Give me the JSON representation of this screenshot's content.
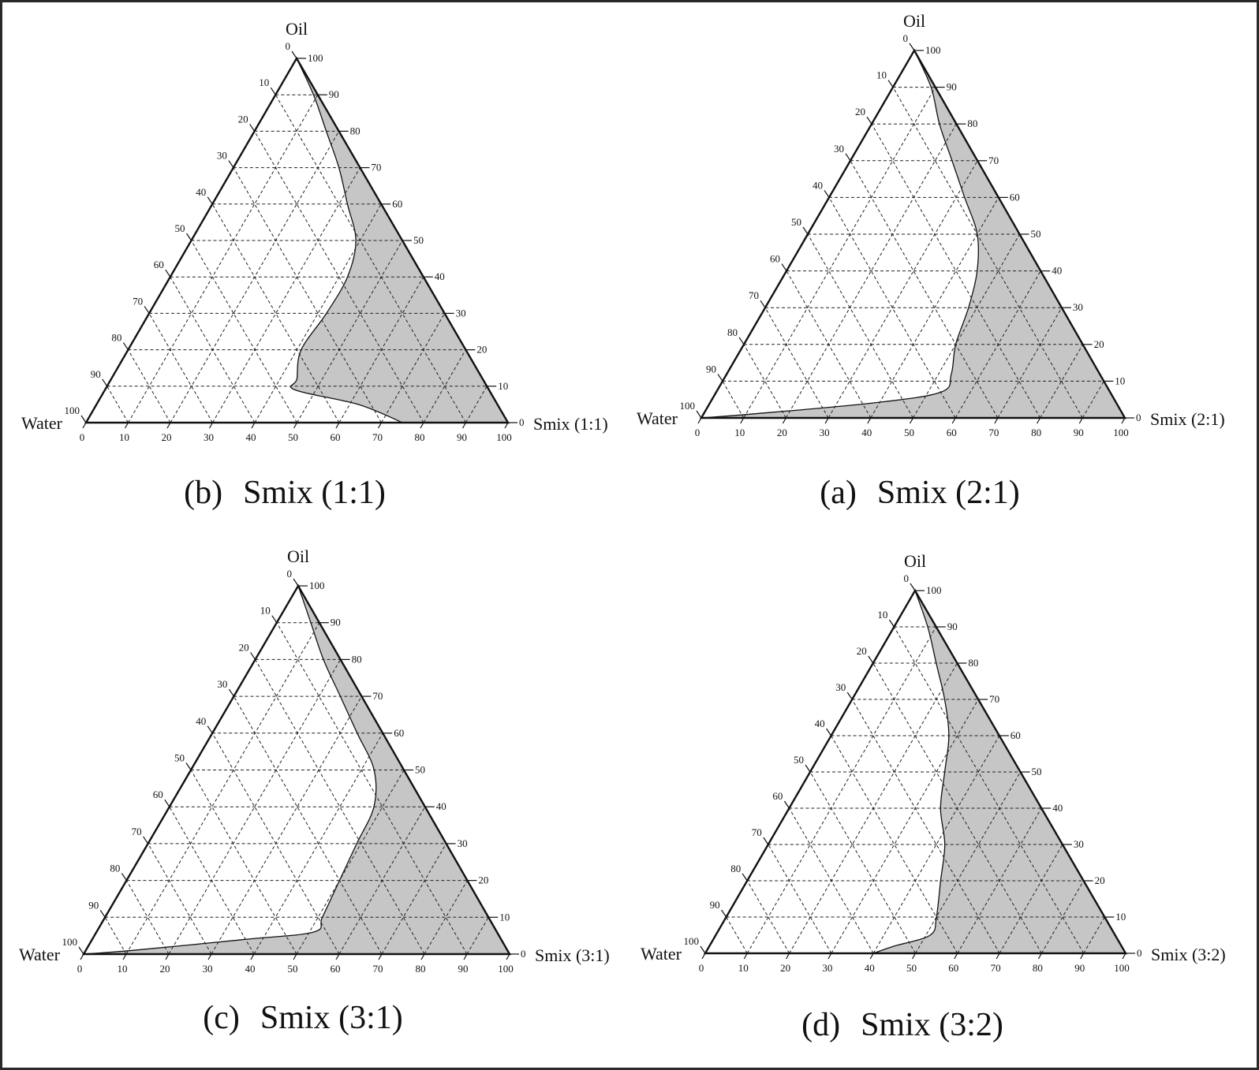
{
  "chart_data": [
    {
      "type": "ternary",
      "caption_letter": "(b)",
      "caption_text": "Smix (1:1)",
      "vertex_labels": {
        "top": "Oil",
        "left": "Water",
        "right": "Smix (1:1)"
      },
      "tick_labels": [
        "0",
        "10",
        "20",
        "30",
        "40",
        "50",
        "60",
        "70",
        "80",
        "90",
        "100"
      ],
      "grid": true,
      "shaded_region_color": "#c6c6c6",
      "boundary": [
        {
          "oil": 100,
          "water": 0
        },
        {
          "oil": 90,
          "water": 1
        },
        {
          "oil": 80,
          "water": 3
        },
        {
          "oil": 70,
          "water": 5
        },
        {
          "oil": 60,
          "water": 8
        },
        {
          "oil": 50,
          "water": 11
        },
        {
          "oil": 40,
          "water": 18
        },
        {
          "oil": 30,
          "water": 28
        },
        {
          "oil": 20,
          "water": 39
        },
        {
          "oil": 12,
          "water": 44
        },
        {
          "oil": 9,
          "water": 46
        },
        {
          "oil": 5,
          "water": 33
        },
        {
          "oil": 0,
          "water": 25
        }
      ]
    },
    {
      "type": "ternary",
      "caption_letter": "(a)",
      "caption_text": "Smix (2:1)",
      "vertex_labels": {
        "top": "Oil",
        "left": "Water",
        "right": "Smix (2:1)"
      },
      "tick_labels": [
        "0",
        "10",
        "20",
        "30",
        "40",
        "50",
        "60",
        "70",
        "80",
        "90",
        "100"
      ],
      "grid": true,
      "shaded_region_color": "#c6c6c6",
      "boundary": [
        {
          "oil": 100,
          "water": 0
        },
        {
          "oil": 90,
          "water": 1
        },
        {
          "oil": 80,
          "water": 4
        },
        {
          "oil": 70,
          "water": 6
        },
        {
          "oil": 60,
          "water": 8
        },
        {
          "oil": 50,
          "water": 10
        },
        {
          "oil": 40,
          "water": 15
        },
        {
          "oil": 30,
          "water": 22
        },
        {
          "oil": 20,
          "water": 30
        },
        {
          "oil": 12,
          "water": 35
        },
        {
          "oil": 7,
          "water": 40
        },
        {
          "oil": 4,
          "water": 58
        },
        {
          "oil": 1,
          "water": 88
        },
        {
          "oil": 0,
          "water": 100
        }
      ]
    },
    {
      "type": "ternary",
      "caption_letter": "(c)",
      "caption_text": "Smix (3:1)",
      "vertex_labels": {
        "top": "Oil",
        "left": "Water",
        "right": "Smix (3:1)"
      },
      "tick_labels": [
        "0",
        "10",
        "20",
        "30",
        "40",
        "50",
        "60",
        "70",
        "80",
        "90",
        "100"
      ],
      "grid": true,
      "shaded_region_color": "#c6c6c6",
      "boundary": [
        {
          "oil": 100,
          "water": 0
        },
        {
          "oil": 90,
          "water": 2
        },
        {
          "oil": 80,
          "water": 4
        },
        {
          "oil": 70,
          "water": 5
        },
        {
          "oil": 60,
          "water": 6
        },
        {
          "oil": 50,
          "water": 7
        },
        {
          "oil": 40,
          "water": 12
        },
        {
          "oil": 30,
          "water": 21
        },
        {
          "oil": 20,
          "water": 30
        },
        {
          "oil": 10,
          "water": 39
        },
        {
          "oil": 6,
          "water": 43
        },
        {
          "oil": 4,
          "water": 60
        },
        {
          "oil": 1,
          "water": 88
        },
        {
          "oil": 0,
          "water": 100
        }
      ]
    },
    {
      "type": "ternary",
      "caption_letter": "(d)",
      "caption_text": "Smix (3:2)",
      "vertex_labels": {
        "top": "Oil",
        "left": "Water",
        "right": "Smix (3:2)"
      },
      "tick_labels": [
        "0",
        "10",
        "20",
        "30",
        "40",
        "50",
        "60",
        "70",
        "80",
        "90",
        "100"
      ],
      "grid": true,
      "shaded_region_color": "#c6c6c6",
      "boundary": [
        {
          "oil": 100,
          "water": 0
        },
        {
          "oil": 90,
          "water": 2
        },
        {
          "oil": 80,
          "water": 5
        },
        {
          "oil": 70,
          "water": 8
        },
        {
          "oil": 60,
          "water": 12
        },
        {
          "oil": 50,
          "water": 18
        },
        {
          "oil": 40,
          "water": 24
        },
        {
          "oil": 30,
          "water": 28
        },
        {
          "oil": 20,
          "water": 34
        },
        {
          "oil": 10,
          "water": 40
        },
        {
          "oil": 5,
          "water": 44
        },
        {
          "oil": 2,
          "water": 54
        },
        {
          "oil": 0,
          "water": 60
        }
      ]
    }
  ]
}
